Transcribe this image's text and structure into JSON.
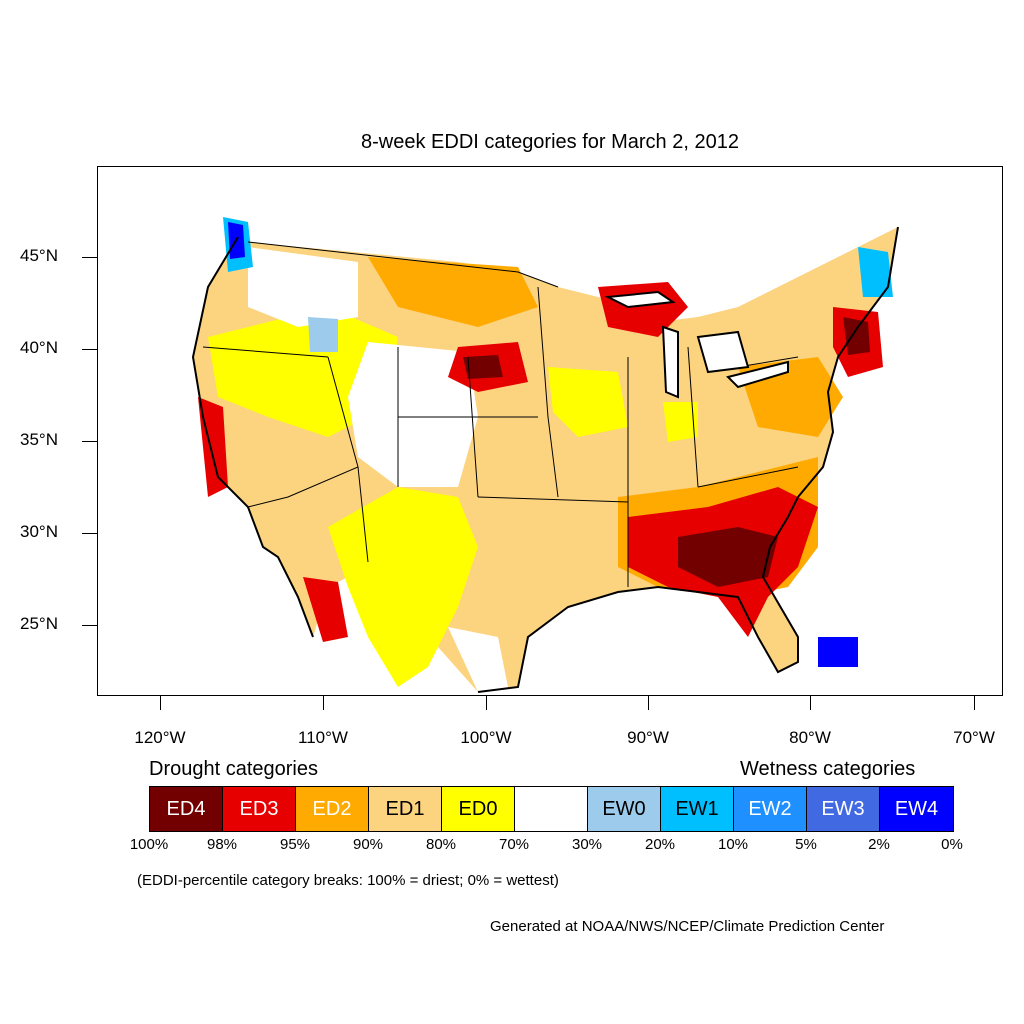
{
  "title": "8-week EDDI categories for March 2, 2012",
  "axes": {
    "lat_labels": [
      "45°N",
      "40°N",
      "35°N",
      "30°N",
      "25°N"
    ],
    "lon_labels": [
      "120°W",
      "110°W",
      "100°W",
      "90°W",
      "80°W",
      "70°W"
    ]
  },
  "legend": {
    "drought_heading": "Drought categories",
    "wetness_heading": "Wetness categories",
    "categories": [
      {
        "label": "ED4",
        "color": "#730000",
        "text_color": "#ffffff"
      },
      {
        "label": "ED3",
        "color": "#e60000",
        "text_color": "#ffffff"
      },
      {
        "label": "ED2",
        "color": "#ffaa00",
        "text_color": "#ffffff"
      },
      {
        "label": "ED1",
        "color": "#fcd37f",
        "text_color": "#000000"
      },
      {
        "label": "ED0",
        "color": "#ffff00",
        "text_color": "#000000"
      },
      {
        "label": "",
        "color": "#ffffff",
        "text_color": "#000000"
      },
      {
        "label": "EW0",
        "color": "#9ccbec",
        "text_color": "#000000"
      },
      {
        "label": "EW1",
        "color": "#00bfff",
        "text_color": "#000000"
      },
      {
        "label": "EW2",
        "color": "#1e90ff",
        "text_color": "#ffffff"
      },
      {
        "label": "EW3",
        "color": "#4169e1",
        "text_color": "#ffffff"
      },
      {
        "label": "EW4",
        "color": "#0000ff",
        "text_color": "#ffffff"
      }
    ],
    "percentiles": [
      "100%",
      "98%",
      "95%",
      "90%",
      "80%",
      "70%",
      "30%",
      "20%",
      "10%",
      "5%",
      "2%",
      "0%"
    ]
  },
  "note": "(EDDI-percentile category breaks: 100% = driest; 0% = wettest)",
  "credit": "Generated at NOAA/NWS/NCEP/Climate Prediction Center"
}
